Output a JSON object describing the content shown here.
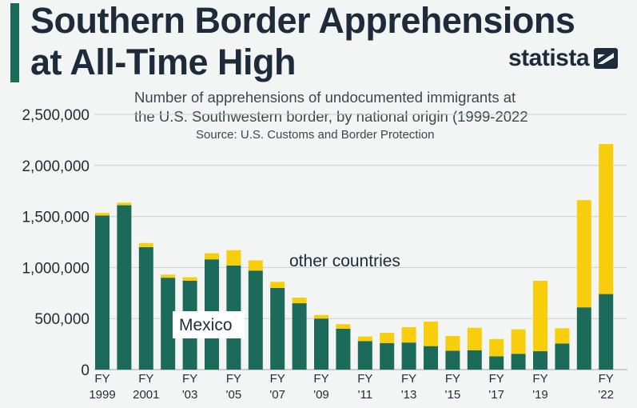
{
  "header": {
    "title_line1": "Southern Border Apprehensions",
    "title_line2": "at All-Time High",
    "brand": "statista",
    "subtitle_line1": "Number of apprehensions of undocumented immigrants at",
    "subtitle_line2": "the U.S. Southwestern border, by national origin (1999-2022",
    "source": "Source: U.S. Customs and Border Protection"
  },
  "colors": {
    "mexico": "#1c6b5a",
    "other": "#f7cd0c",
    "text": "#1d2b3a",
    "grid": "#c9ced2"
  },
  "chart_data": {
    "type": "bar",
    "stacked": true,
    "categories": [
      "FY 1999",
      "FY 2000",
      "FY 2001",
      "FY 2002",
      "FY 2003",
      "FY 2004",
      "FY 2005",
      "FY 2006",
      "FY 2007",
      "FY 2008",
      "FY 2009",
      "FY 2010",
      "FY 2011",
      "FY 2012",
      "FY 2013",
      "FY 2014",
      "FY 2015",
      "FY 2016",
      "FY 2017",
      "FY 2018",
      "FY 2019",
      "FY 2020",
      "FY 2021",
      "FY 2022"
    ],
    "series": [
      {
        "name": "Mexico",
        "values": [
          1510000,
          1610000,
          1200000,
          900000,
          870000,
          1080000,
          1020000,
          970000,
          800000,
          650000,
          500000,
          400000,
          280000,
          260000,
          265000,
          230000,
          185000,
          190000,
          130000,
          155000,
          180000,
          255000,
          610000,
          740000
        ]
      },
      {
        "name": "other countries",
        "values": [
          25000,
          25000,
          40000,
          30000,
          35000,
          60000,
          150000,
          100000,
          60000,
          55000,
          35000,
          45000,
          45000,
          100000,
          150000,
          240000,
          145000,
          220000,
          170000,
          240000,
          690000,
          150000,
          1050000,
          1470000
        ]
      }
    ],
    "ylim": [
      0,
      2500000
    ],
    "yticks": [
      0,
      500000,
      1000000,
      1500000,
      2000000,
      2500000
    ],
    "ytick_labels": [
      "0",
      "500,000",
      "1,000,000",
      "1,500,000",
      "2,000,000",
      "2,500,000"
    ],
    "xtick_labels": [
      {
        "index": 0,
        "line1": "FY",
        "line2": "1999"
      },
      {
        "index": 2,
        "line1": "FY",
        "line2": "2001"
      },
      {
        "index": 4,
        "line1": "FY",
        "line2": "'03"
      },
      {
        "index": 6,
        "line1": "FY",
        "line2": "'05"
      },
      {
        "index": 8,
        "line1": "FY",
        "line2": "'07"
      },
      {
        "index": 10,
        "line1": "FY",
        "line2": "'09"
      },
      {
        "index": 12,
        "line1": "FY",
        "line2": "'11"
      },
      {
        "index": 14,
        "line1": "FY",
        "line2": "'13"
      },
      {
        "index": 16,
        "line1": "FY",
        "line2": "'15"
      },
      {
        "index": 18,
        "line1": "FY",
        "line2": "'17"
      },
      {
        "index": 20,
        "line1": "FY",
        "line2": "'19"
      },
      {
        "index": 23,
        "line1": "FY",
        "line2": "'22"
      }
    ],
    "annotations": [
      {
        "text": "other countries",
        "series": "other countries"
      },
      {
        "text": "Mexico",
        "series": "Mexico"
      }
    ],
    "grid": true,
    "legend": "none"
  }
}
